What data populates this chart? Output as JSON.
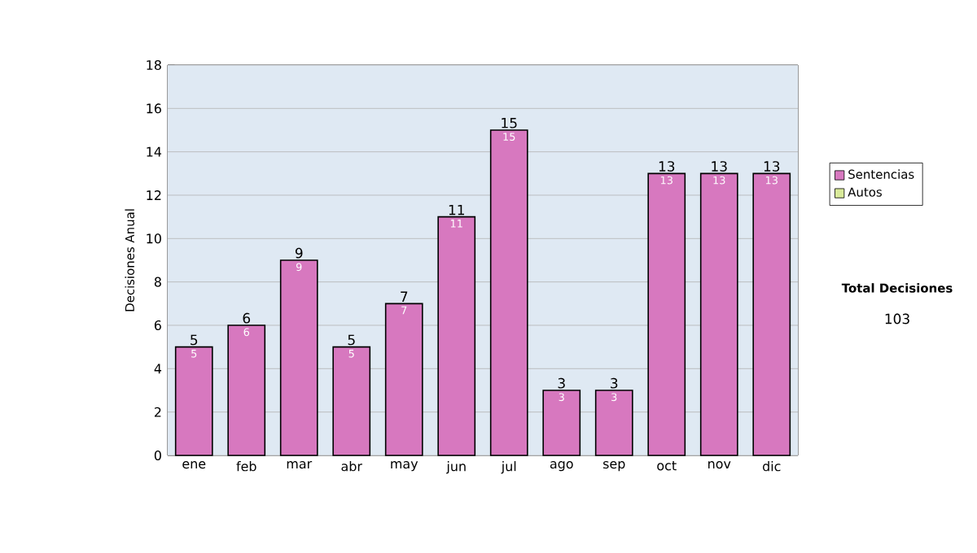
{
  "chart_data": {
    "type": "bar",
    "stacked": true,
    "ylabel": "Decisiones Anual",
    "categories": [
      "ene",
      "feb",
      "mar",
      "abr",
      "may",
      "jun",
      "jul",
      "ago",
      "sep",
      "oct",
      "nov",
      "dic"
    ],
    "series": [
      {
        "name": "Sentencias",
        "color": "#d778bf",
        "values": [
          5,
          6,
          9,
          5,
          7,
          11,
          15,
          3,
          3,
          13,
          13,
          13
        ]
      },
      {
        "name": "Autos",
        "color": "#d9ea9a",
        "values": [
          null,
          null,
          null,
          null,
          null,
          null,
          null,
          null,
          null,
          null,
          null,
          null
        ]
      }
    ],
    "totals": [
      "5",
      "6",
      "9",
      "5",
      "7",
      "11",
      "15",
      "3",
      "3",
      "13",
      "13",
      "13"
    ],
    "data_labels": true,
    "ylim": [
      0,
      18
    ],
    "yticks": [
      0,
      2,
      4,
      6,
      8,
      10,
      12,
      14,
      16,
      18
    ],
    "grid": "y",
    "legend": "right",
    "annotations": [
      "Total Decisiones",
      "103"
    ]
  }
}
